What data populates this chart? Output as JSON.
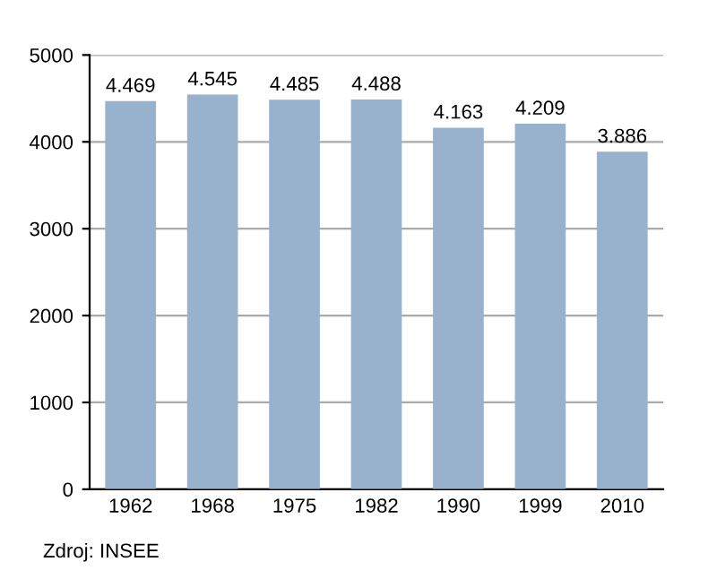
{
  "chart_data": {
    "type": "bar",
    "categories": [
      "1962",
      "1968",
      "1975",
      "1982",
      "1990",
      "1999",
      "2010"
    ],
    "values": [
      4469,
      4545,
      4485,
      4488,
      4163,
      4209,
      3886
    ],
    "value_labels": [
      "4.469",
      "4.545",
      "4.485",
      "4.488",
      "4.163",
      "4.209",
      "3.886"
    ],
    "color": "#98b2cd",
    "ylim": [
      0,
      5000
    ],
    "yticks": [
      0,
      1000,
      2000,
      3000,
      4000,
      5000
    ],
    "grid": "y",
    "annotations": [
      "Zdroj: INSEE"
    ]
  }
}
